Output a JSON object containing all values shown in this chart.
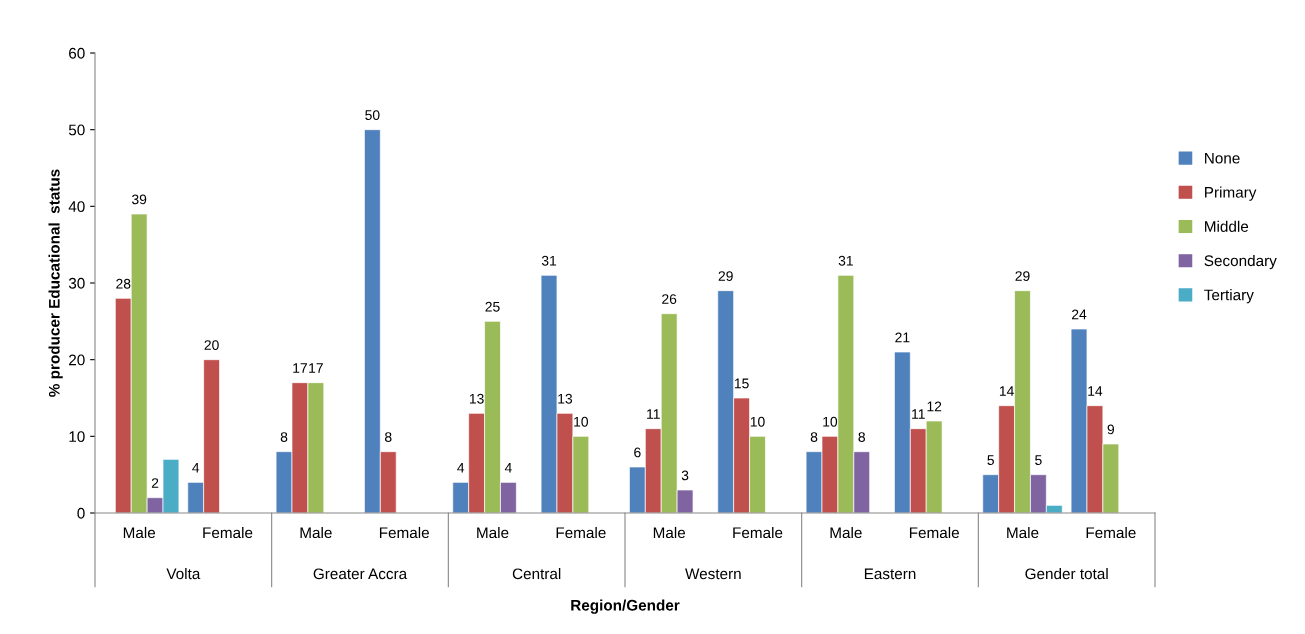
{
  "chart_data": {
    "type": "bar",
    "xlabel": "Region/Gender",
    "ylabel": "% producer Educational  status",
    "categories": [
      "Male",
      "Female",
      "Male",
      "Female",
      "Male",
      "Female",
      "Male",
      "Female",
      "Male",
      "Female",
      "Male",
      "Female"
    ],
    "annotations": [
      "Volta",
      "Greater Accra",
      "Central",
      "Western",
      "Eastern",
      "Gender total"
    ],
    "ylim": [
      0,
      60
    ],
    "yticks": [
      0,
      10,
      20,
      30,
      40,
      50,
      60
    ],
    "grid": false,
    "legend": "right",
    "series": [
      {
        "name": "None",
        "color": "#4f81bd",
        "values": [
          null,
          4,
          8,
          50,
          4,
          31,
          6,
          29,
          8,
          21,
          5,
          24
        ],
        "value_labels": [
          null,
          "4",
          "8",
          "50",
          "4",
          "31",
          "6",
          "29",
          "8",
          "21",
          "5",
          "24"
        ]
      },
      {
        "name": "Primary",
        "color": "#c0504d",
        "values": [
          28,
          20,
          17,
          8,
          13,
          13,
          11,
          15,
          10,
          11,
          14,
          14
        ],
        "value_labels": [
          "28",
          "20",
          "17",
          "8",
          "13",
          "13",
          "11",
          "15",
          "10",
          "11",
          "14",
          "14"
        ]
      },
      {
        "name": "Middle",
        "color": "#9bbb59",
        "values": [
          39,
          null,
          17,
          null,
          25,
          10,
          26,
          10,
          31,
          12,
          29,
          9
        ],
        "value_labels": [
          "39",
          null,
          "17",
          null,
          "25",
          "10",
          "26",
          "10",
          "31",
          "12",
          "29",
          "9"
        ]
      },
      {
        "name": "Secondary",
        "color": "#8064a2",
        "values": [
          2,
          null,
          null,
          null,
          4,
          null,
          3,
          null,
          8,
          null,
          5,
          null
        ],
        "value_labels": [
          "2",
          null,
          null,
          null,
          "4",
          null,
          "3",
          null,
          "8",
          null,
          "5",
          null
        ]
      },
      {
        "name": "Tertiary",
        "color": "#4bacc6",
        "values": [
          7,
          null,
          null,
          null,
          null,
          null,
          null,
          null,
          null,
          null,
          1,
          null
        ],
        "value_labels": [
          null,
          null,
          null,
          null,
          null,
          null,
          null,
          null,
          null,
          null,
          null,
          null
        ]
      }
    ]
  }
}
